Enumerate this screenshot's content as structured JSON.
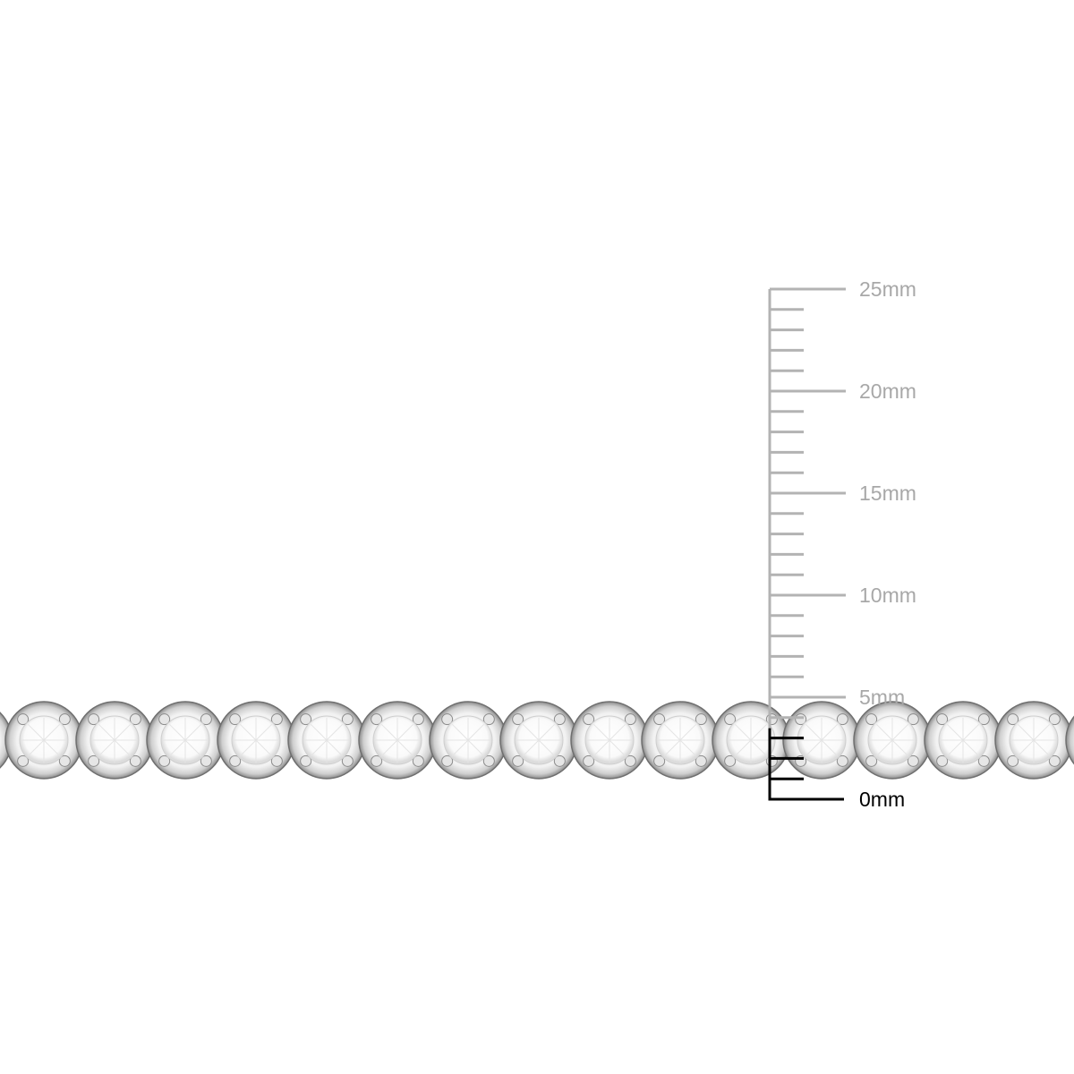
{
  "product_image": {
    "subject": "tennis bracelet",
    "colors": {
      "metal": "#c9c9c9",
      "stone": "#ffffff",
      "background": "#ffffff"
    }
  },
  "scale_ruler": {
    "unit": "mm",
    "range": [
      0,
      25
    ],
    "minor_step": 1,
    "major_step": 5,
    "labels": [
      "0mm",
      "5mm",
      "10mm",
      "15mm",
      "20mm",
      "25mm"
    ],
    "highlighted_range": [
      0,
      3
    ],
    "colors": {
      "ruler": "#b3b3b3",
      "highlight": "#000000"
    }
  }
}
